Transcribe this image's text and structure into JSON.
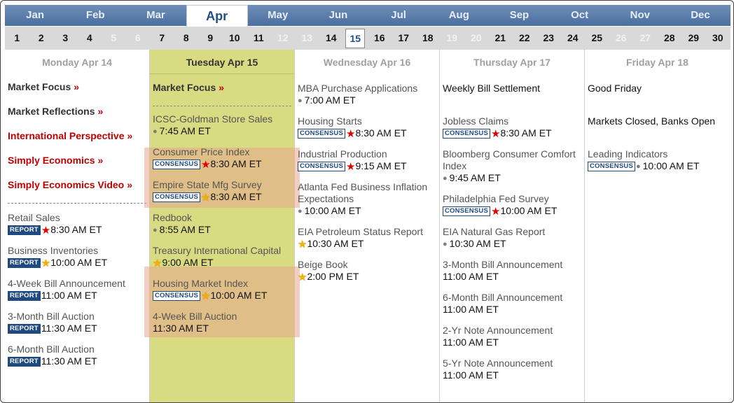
{
  "months": [
    "Jan",
    "Feb",
    "Mar",
    "Apr",
    "May",
    "Jun",
    "Jul",
    "Aug",
    "Sep",
    "Oct",
    "Nov",
    "Dec"
  ],
  "active_month": "Apr",
  "days": [
    {
      "n": "1",
      "w": false
    },
    {
      "n": "2",
      "w": false
    },
    {
      "n": "3",
      "w": false
    },
    {
      "n": "4",
      "w": false
    },
    {
      "n": "5",
      "w": true
    },
    {
      "n": "6",
      "w": true
    },
    {
      "n": "7",
      "w": false
    },
    {
      "n": "8",
      "w": false
    },
    {
      "n": "9",
      "w": false
    },
    {
      "n": "10",
      "w": false
    },
    {
      "n": "11",
      "w": false
    },
    {
      "n": "12",
      "w": true
    },
    {
      "n": "13",
      "w": true
    },
    {
      "n": "14",
      "w": false
    },
    {
      "n": "15",
      "w": false,
      "today": true
    },
    {
      "n": "16",
      "w": false
    },
    {
      "n": "17",
      "w": false
    },
    {
      "n": "18",
      "w": false
    },
    {
      "n": "19",
      "w": true
    },
    {
      "n": "20",
      "w": true
    },
    {
      "n": "21",
      "w": false
    },
    {
      "n": "22",
      "w": false
    },
    {
      "n": "23",
      "w": false
    },
    {
      "n": "24",
      "w": false
    },
    {
      "n": "25",
      "w": false
    },
    {
      "n": "26",
      "w": true
    },
    {
      "n": "27",
      "w": true
    },
    {
      "n": "28",
      "w": false
    },
    {
      "n": "29",
      "w": false
    },
    {
      "n": "30",
      "w": false
    }
  ],
  "columns": {
    "mon": {
      "title": "Monday Apr 14",
      "links": [
        {
          "label": "Market Focus",
          "arrow": "»",
          "red": false
        },
        {
          "label": "Market Reflections",
          "arrow": "»",
          "red": false
        },
        {
          "label": "International Perspective",
          "arrow": "»",
          "red": true
        },
        {
          "label": "Simply Economics",
          "arrow": "»",
          "red": true
        },
        {
          "label": "Simply Economics Video",
          "arrow": "»",
          "red": true
        }
      ],
      "events": [
        {
          "name": "Retail Sales",
          "badge": "REPORT",
          "star": "red",
          "time": "8:30 AM ET"
        },
        {
          "name": "Business Inventories",
          "badge": "REPORT",
          "star": "gold",
          "time": "10:00 AM ET"
        },
        {
          "name": "4-Week Bill Announcement",
          "badge": "REPORT",
          "time": "11:00 AM ET"
        },
        {
          "name": "3-Month Bill Auction",
          "badge": "REPORT",
          "time": "11:30 AM ET"
        },
        {
          "name": "6-Month Bill Auction",
          "badge": "REPORT",
          "time": "11:30 AM ET"
        }
      ]
    },
    "tue": {
      "title": "Tuesday Apr 15",
      "links": [
        {
          "label": "Market Focus",
          "arrow": "»",
          "red": false
        }
      ],
      "events": [
        {
          "name": "ICSC-Goldman Store Sales",
          "dot": true,
          "time": "7:45 AM ET"
        },
        {
          "name": "Consumer Price Index",
          "badge": "CONSENSUS",
          "star": "red",
          "time": "8:30 AM ET"
        },
        {
          "name": "Empire State Mfg Survey",
          "badge": "CONSENSUS",
          "star": "gold",
          "time": "8:30 AM ET"
        },
        {
          "name": "Redbook",
          "dot": true,
          "time": "8:55 AM ET"
        },
        {
          "name": "Treasury International Capital",
          "star": "gold",
          "time": "9:00 AM ET"
        },
        {
          "name": "Housing Market Index",
          "badge": "CONSENSUS",
          "star": "gold",
          "time": "10:00 AM ET"
        },
        {
          "name": "4-Week Bill Auction",
          "time": "11:30 AM ET"
        }
      ]
    },
    "wed": {
      "title": "Wednesday Apr 16",
      "events": [
        {
          "name": "MBA Purchase Applications",
          "dot": true,
          "time": "7:00 AM ET"
        },
        {
          "name": "Housing Starts",
          "badge": "CONSENSUS",
          "star": "red",
          "time": "8:30 AM ET"
        },
        {
          "name": "Industrial Production",
          "badge": "CONSENSUS",
          "star": "red",
          "time": "9:15 AM ET"
        },
        {
          "name": "Atlanta Fed Business Inflation Expectations",
          "dot": true,
          "time": "10:00 AM ET"
        },
        {
          "name": "EIA Petroleum Status Report",
          "star": "gold",
          "time": "10:30 AM ET"
        },
        {
          "name": "Beige Book",
          "star": "gold",
          "time": "2:00 PM ET"
        }
      ]
    },
    "thu": {
      "title": "Thursday Apr 17",
      "events": [
        {
          "name": "Weekly Bill Settlement"
        },
        {
          "name": "Jobless Claims",
          "badge": "CONSENSUS",
          "star": "red",
          "time": "8:30 AM ET"
        },
        {
          "name": "Bloomberg Consumer Comfort Index",
          "dot": true,
          "time": "9:45 AM ET"
        },
        {
          "name": "Philadelphia Fed Survey",
          "badge": "CONSENSUS",
          "star": "red",
          "time": "10:00 AM ET"
        },
        {
          "name": "EIA Natural Gas Report",
          "dot": true,
          "time": "10:30 AM ET"
        },
        {
          "name": "3-Month Bill Announcement",
          "time": "11:00 AM ET"
        },
        {
          "name": "6-Month Bill Announcement",
          "time": "11:00 AM ET"
        },
        {
          "name": "2-Yr Note Announcement",
          "time": "11:00 AM ET"
        },
        {
          "name": "5-Yr Note Announcement",
          "time": "11:00 AM ET"
        }
      ]
    },
    "fri": {
      "title": "Friday Apr 18",
      "events": [
        {
          "name": "Good Friday"
        },
        {
          "name": "Markets Closed, Banks Open"
        },
        {
          "name": "Leading Indicators",
          "badge": "CONSENSUS",
          "dot": true,
          "time": "10:00 AM ET"
        }
      ]
    }
  }
}
